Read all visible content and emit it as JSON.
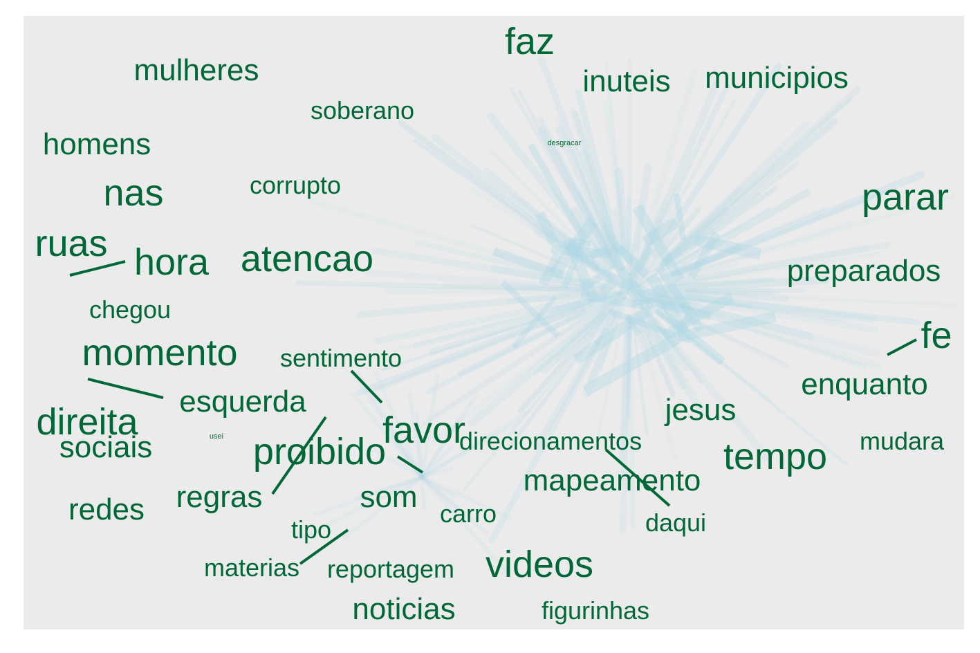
{
  "colors": {
    "background": "#ebebeb",
    "word": "#006837",
    "cloud_edge": "#add8e6",
    "link": "#006837"
  },
  "words": [
    {
      "id": "faz",
      "text": "faz",
      "weight": 5
    },
    {
      "id": "inuteis",
      "text": "inuteis",
      "weight": 4
    },
    {
      "id": "municipios",
      "text": "municipios",
      "weight": 4
    },
    {
      "id": "mulheres",
      "text": "mulheres",
      "weight": 4
    },
    {
      "id": "soberano",
      "text": "soberano",
      "weight": 3
    },
    {
      "id": "homens",
      "text": "homens",
      "weight": 4
    },
    {
      "id": "desgracar",
      "text": "desgracar",
      "weight": 1
    },
    {
      "id": "nas",
      "text": "nas",
      "weight": 5
    },
    {
      "id": "corrupto",
      "text": "corrupto",
      "weight": 3
    },
    {
      "id": "parar",
      "text": "parar",
      "weight": 5
    },
    {
      "id": "ruas",
      "text": "ruas",
      "weight": 5
    },
    {
      "id": "hora",
      "text": "hora",
      "weight": 5
    },
    {
      "id": "atencao",
      "text": "atencao",
      "weight": 5
    },
    {
      "id": "preparados",
      "text": "preparados",
      "weight": 4
    },
    {
      "id": "chegou",
      "text": "chegou",
      "weight": 3
    },
    {
      "id": "fe",
      "text": "fe",
      "weight": 5
    },
    {
      "id": "momento",
      "text": "momento",
      "weight": 5
    },
    {
      "id": "sentimento",
      "text": "sentimento",
      "weight": 3
    },
    {
      "id": "enquanto",
      "text": "enquanto",
      "weight": 4
    },
    {
      "id": "esquerda",
      "text": "esquerda",
      "weight": 4
    },
    {
      "id": "jesus",
      "text": "jesus",
      "weight": 4
    },
    {
      "id": "direita",
      "text": "direita",
      "weight": 5
    },
    {
      "id": "favor",
      "text": "favor",
      "weight": 5
    },
    {
      "id": "usei",
      "text": "usei",
      "weight": 1
    },
    {
      "id": "sociais",
      "text": "sociais",
      "weight": 4
    },
    {
      "id": "direcionamentos",
      "text": "direcionamentos",
      "weight": 3
    },
    {
      "id": "mudara",
      "text": "mudara",
      "weight": 3
    },
    {
      "id": "proibido",
      "text": "proibido",
      "weight": 5
    },
    {
      "id": "tempo",
      "text": "tempo",
      "weight": 5
    },
    {
      "id": "mapeamento",
      "text": "mapeamento",
      "weight": 4
    },
    {
      "id": "regras",
      "text": "regras",
      "weight": 4
    },
    {
      "id": "som",
      "text": "som",
      "weight": 4
    },
    {
      "id": "redes",
      "text": "redes",
      "weight": 4
    },
    {
      "id": "carro",
      "text": "carro",
      "weight": 3
    },
    {
      "id": "daqui",
      "text": "daqui",
      "weight": 3
    },
    {
      "id": "tipo",
      "text": "tipo",
      "weight": 3
    },
    {
      "id": "materias",
      "text": "materias",
      "weight": 3
    },
    {
      "id": "reportagem",
      "text": "reportagem",
      "weight": 3
    },
    {
      "id": "videos",
      "text": "videos",
      "weight": 5
    },
    {
      "id": "noticias",
      "text": "noticias",
      "weight": 4
    },
    {
      "id": "figurinhas",
      "text": "figurinhas",
      "weight": 3
    }
  ],
  "links": [
    [
      "ruas",
      "hora"
    ],
    [
      "momento",
      "esquerda"
    ],
    [
      "sentimento",
      "favor"
    ],
    [
      "proibido",
      "regras"
    ],
    [
      "favor",
      "som"
    ],
    [
      "direcionamentos",
      "daqui"
    ],
    [
      "tipo",
      "materias"
    ],
    [
      "fe",
      "enquanto"
    ]
  ]
}
